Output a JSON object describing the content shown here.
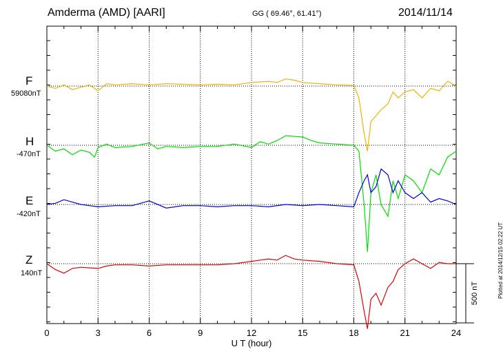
{
  "header": {
    "title": "Amderma (AMD)  [AARI]",
    "coords": "GG ( 69.46°,  61.41°)",
    "date": "2014/11/14",
    "plotted": "Plotted at 2014/12/15 02:22 UT"
  },
  "chart_data": {
    "type": "line",
    "xlabel": "U T (hour)",
    "xlim": [
      0,
      24
    ],
    "xticks": [
      0,
      3,
      6,
      9,
      12,
      15,
      18,
      21,
      24
    ],
    "xtick_labels": [
      "0",
      "3",
      "6",
      "9",
      "12",
      "15",
      "18",
      "21",
      "24"
    ],
    "grid": true,
    "scale_bar": {
      "label": "500 nT",
      "value": 500
    },
    "series": [
      {
        "name": "F",
        "baseline_label": "59080nT",
        "color": "#f0b400",
        "points": [
          [
            0,
            0
          ],
          [
            0.5,
            -20
          ],
          [
            1,
            10
          ],
          [
            1.5,
            -30
          ],
          [
            2,
            -10
          ],
          [
            2.5,
            10
          ],
          [
            3,
            -40
          ],
          [
            3.5,
            20
          ],
          [
            4,
            10
          ],
          [
            5,
            20
          ],
          [
            6,
            10
          ],
          [
            7,
            20
          ],
          [
            8,
            15
          ],
          [
            9,
            10
          ],
          [
            10,
            15
          ],
          [
            11,
            10
          ],
          [
            12,
            30
          ],
          [
            13,
            40
          ],
          [
            13.5,
            30
          ],
          [
            14,
            60
          ],
          [
            14.5,
            50
          ],
          [
            15,
            30
          ],
          [
            16,
            20
          ],
          [
            17,
            10
          ],
          [
            18,
            5
          ],
          [
            18.3,
            -100
          ],
          [
            18.6,
            -400
          ],
          [
            18.8,
            -550
          ],
          [
            19,
            -300
          ],
          [
            19.3,
            -250
          ],
          [
            19.6,
            -200
          ],
          [
            20,
            -150
          ],
          [
            20.3,
            -50
          ],
          [
            20.6,
            -100
          ],
          [
            21,
            -50
          ],
          [
            21.5,
            -30
          ],
          [
            22,
            -100
          ],
          [
            22.5,
            -20
          ],
          [
            23,
            -40
          ],
          [
            23.5,
            40
          ],
          [
            24,
            0
          ]
        ]
      },
      {
        "name": "H",
        "baseline_label": "-470nT",
        "color": "#00e000",
        "points": [
          [
            0,
            0
          ],
          [
            0.5,
            -50
          ],
          [
            1,
            -30
          ],
          [
            1.5,
            -80
          ],
          [
            2,
            -40
          ],
          [
            2.5,
            -60
          ],
          [
            2.8,
            -100
          ],
          [
            3,
            -20
          ],
          [
            3.5,
            10
          ],
          [
            4,
            -20
          ],
          [
            5,
            -10
          ],
          [
            6,
            20
          ],
          [
            6.5,
            -30
          ],
          [
            7,
            -10
          ],
          [
            8,
            -20
          ],
          [
            9,
            -10
          ],
          [
            10,
            -10
          ],
          [
            11,
            10
          ],
          [
            12,
            -20
          ],
          [
            12.5,
            30
          ],
          [
            13,
            10
          ],
          [
            13.5,
            40
          ],
          [
            14,
            80
          ],
          [
            15,
            70
          ],
          [
            15.5,
            40
          ],
          [
            16,
            20
          ],
          [
            17,
            10
          ],
          [
            18,
            0
          ],
          [
            18.3,
            -50
          ],
          [
            18.6,
            -500
          ],
          [
            18.8,
            -900
          ],
          [
            19,
            -400
          ],
          [
            19.3,
            -250
          ],
          [
            19.6,
            -500
          ],
          [
            20,
            -600
          ],
          [
            20.3,
            -300
          ],
          [
            20.6,
            -450
          ],
          [
            21,
            -250
          ],
          [
            21.5,
            -300
          ],
          [
            22,
            -400
          ],
          [
            22.5,
            -200
          ],
          [
            23,
            -250
          ],
          [
            23.5,
            -100
          ],
          [
            24,
            -50
          ]
        ]
      },
      {
        "name": "E",
        "baseline_label": "-420nT",
        "color": "#0000e0",
        "points": [
          [
            0,
            0
          ],
          [
            0.5,
            10
          ],
          [
            1,
            40
          ],
          [
            1.5,
            20
          ],
          [
            2,
            0
          ],
          [
            3,
            -20
          ],
          [
            4,
            -10
          ],
          [
            5,
            -10
          ],
          [
            6,
            30
          ],
          [
            7,
            -30
          ],
          [
            8,
            -10
          ],
          [
            9,
            -10
          ],
          [
            10,
            -20
          ],
          [
            11,
            -10
          ],
          [
            12,
            -10
          ],
          [
            13,
            -20
          ],
          [
            14,
            0
          ],
          [
            15,
            -10
          ],
          [
            16,
            0
          ],
          [
            17,
            -10
          ],
          [
            18,
            -20
          ],
          [
            18.3,
            100
          ],
          [
            18.6,
            200
          ],
          [
            18.8,
            250
          ],
          [
            19,
            100
          ],
          [
            19.3,
            150
          ],
          [
            19.6,
            300
          ],
          [
            20,
            250
          ],
          [
            20.3,
            100
          ],
          [
            20.6,
            200
          ],
          [
            21,
            100
          ],
          [
            21.5,
            50
          ],
          [
            22,
            100
          ],
          [
            22.5,
            20
          ],
          [
            23,
            50
          ],
          [
            23.5,
            30
          ],
          [
            24,
            0
          ]
        ]
      },
      {
        "name": "Z",
        "baseline_label": "140nT",
        "color": "#e00000",
        "points": [
          [
            0,
            0
          ],
          [
            0.5,
            -50
          ],
          [
            1,
            -80
          ],
          [
            1.5,
            -40
          ],
          [
            2,
            -30
          ],
          [
            3,
            -40
          ],
          [
            3.5,
            -20
          ],
          [
            4,
            -10
          ],
          [
            5,
            -10
          ],
          [
            6,
            -20
          ],
          [
            7,
            -10
          ],
          [
            8,
            -10
          ],
          [
            9,
            -10
          ],
          [
            10,
            -10
          ],
          [
            11,
            0
          ],
          [
            12,
            20
          ],
          [
            13,
            40
          ],
          [
            13.5,
            30
          ],
          [
            14,
            70
          ],
          [
            14.5,
            40
          ],
          [
            15,
            30
          ],
          [
            16,
            20
          ],
          [
            17,
            0
          ],
          [
            18,
            -10
          ],
          [
            18.3,
            -150
          ],
          [
            18.6,
            -400
          ],
          [
            18.8,
            -550
          ],
          [
            19,
            -300
          ],
          [
            19.3,
            -250
          ],
          [
            19.6,
            -350
          ],
          [
            20,
            -200
          ],
          [
            20.3,
            -150
          ],
          [
            20.6,
            -50
          ],
          [
            21,
            0
          ],
          [
            21.5,
            40
          ],
          [
            22,
            0
          ],
          [
            22.5,
            -40
          ],
          [
            23,
            10
          ],
          [
            23.5,
            0
          ],
          [
            24,
            0
          ]
        ]
      }
    ]
  }
}
